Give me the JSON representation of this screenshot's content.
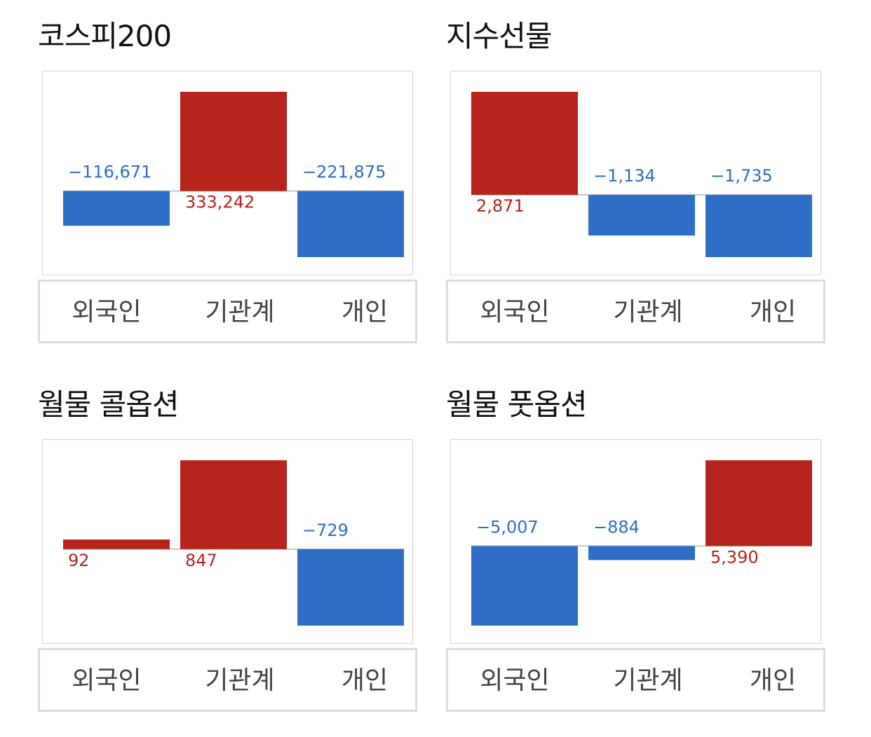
{
  "colors": {
    "positive": "#b7241b",
    "negative": "#2e6ec6",
    "baseline": "#c8c8c8"
  },
  "chart_data": [
    {
      "type": "bar",
      "title": "코스피200",
      "categories": [
        "외국인",
        "기관계",
        "개인"
      ],
      "values": [
        -116671,
        333242,
        -221875
      ],
      "value_labels": [
        "−116,671",
        "333,242",
        "−221,875"
      ],
      "ylim": [
        -221875,
        333242
      ]
    },
    {
      "type": "bar",
      "title": "지수선물",
      "categories": [
        "외국인",
        "기관계",
        "개인"
      ],
      "values": [
        2871,
        -1134,
        -1735
      ],
      "value_labels": [
        "2,871",
        "−1,134",
        "−1,735"
      ],
      "ylim": [
        -1735,
        2871
      ]
    },
    {
      "type": "bar",
      "title": "월물 콜옵션",
      "categories": [
        "외국인",
        "기관계",
        "개인"
      ],
      "values": [
        92,
        847,
        -729
      ],
      "value_labels": [
        "92",
        "847",
        "−729"
      ],
      "ylim": [
        -729,
        847
      ]
    },
    {
      "type": "bar",
      "title": "월물 풋옵션",
      "categories": [
        "외국인",
        "기관계",
        "개인"
      ],
      "values": [
        -5007,
        -884,
        5390
      ],
      "value_labels": [
        "−5,007",
        "−884",
        "5,390"
      ],
      "ylim": [
        -5007,
        5390
      ]
    }
  ]
}
